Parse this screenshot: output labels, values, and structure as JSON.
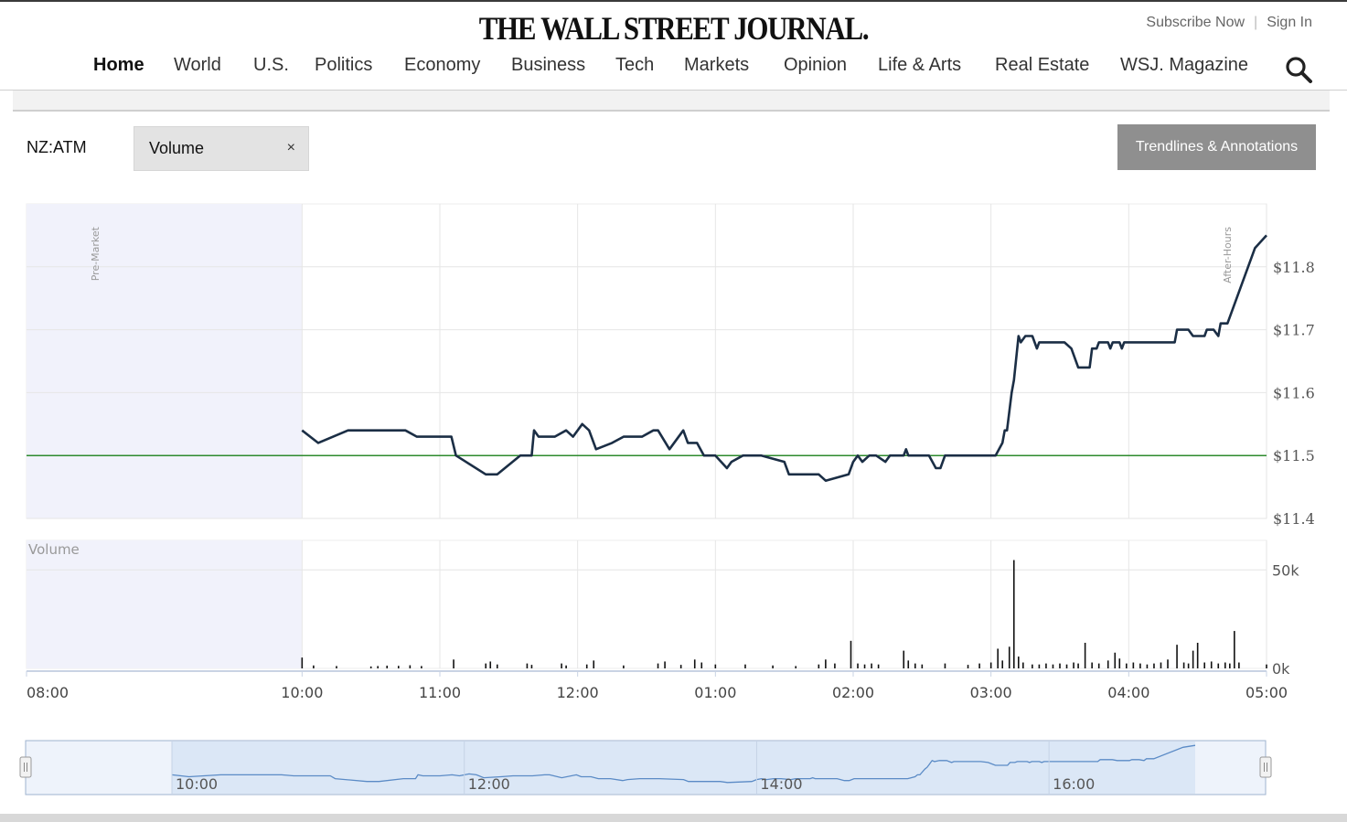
{
  "header": {
    "masthead": "THE WALL STREET JOURNAL.",
    "subscribe": "Subscribe Now",
    "separator": "|",
    "signin": "Sign In",
    "nav": [
      {
        "label": "Home",
        "active": true
      },
      {
        "label": "World"
      },
      {
        "label": "U.S."
      },
      {
        "label": "Politics"
      },
      {
        "label": "Economy"
      },
      {
        "label": "Business"
      },
      {
        "label": "Tech"
      },
      {
        "label": "Markets"
      },
      {
        "label": "Opinion"
      },
      {
        "label": "Life & Arts"
      },
      {
        "label": "Real Estate"
      },
      {
        "label": "WSJ. Magazine"
      }
    ],
    "search_icon": "search-icon"
  },
  "toolbar": {
    "symbol": "NZ:ATM",
    "indicator_chip": "Volume",
    "chip_close": "×",
    "trendlines_button": "Trendlines & Annotations"
  },
  "colors": {
    "price_line": "#1b2e45",
    "reference_line": "#2e8b2e",
    "session_shade": "#f1f2fb",
    "navigator_fill": "#dbe7f6",
    "navigator_line": "#5b8bc6"
  },
  "chart_data": [
    {
      "type": "line",
      "name": "price",
      "x_axis_ticks": [
        "08:00",
        "10:00",
        "11:00",
        "12:00",
        "01:00",
        "02:00",
        "03:00",
        "04:00",
        "05:00"
      ],
      "y_ticks": [
        "$11.4",
        "$11.5",
        "$11.6",
        "$11.7",
        "$11.8"
      ],
      "ylim": [
        11.4,
        11.9
      ],
      "reference_line": 11.5,
      "session_labels": {
        "pre": "Pre-Market",
        "post": "After-Hours"
      },
      "points": [
        [
          "10:00",
          11.54
        ],
        [
          "10:07",
          11.52
        ],
        [
          "10:20",
          11.54
        ],
        [
          "10:45",
          11.54
        ],
        [
          "10:50",
          11.53
        ],
        [
          "11:05",
          11.53
        ],
        [
          "11:07",
          11.5
        ],
        [
          "11:20",
          11.47
        ],
        [
          "11:25",
          11.47
        ],
        [
          "11:35",
          11.5
        ],
        [
          "11:40",
          11.5
        ],
        [
          "11:41",
          11.54
        ],
        [
          "11:43",
          11.53
        ],
        [
          "11:50",
          11.53
        ],
        [
          "11:55",
          11.54
        ],
        [
          "11:58",
          11.53
        ],
        [
          "12:02",
          11.55
        ],
        [
          "12:05",
          11.54
        ],
        [
          "12:08",
          11.51
        ],
        [
          "12:15",
          11.52
        ],
        [
          "12:20",
          11.53
        ],
        [
          "12:28",
          11.53
        ],
        [
          "12:33",
          11.54
        ],
        [
          "12:35",
          11.54
        ],
        [
          "12:40",
          11.51
        ],
        [
          "12:46",
          11.54
        ],
        [
          "12:48",
          11.52
        ],
        [
          "12:52",
          11.52
        ],
        [
          "12:55",
          11.5
        ],
        [
          "13:00",
          11.5
        ],
        [
          "13:05",
          11.48
        ],
        [
          "13:07",
          11.49
        ],
        [
          "13:12",
          11.5
        ],
        [
          "13:20",
          11.5
        ],
        [
          "13:30",
          11.49
        ],
        [
          "13:32",
          11.47
        ],
        [
          "13:45",
          11.47
        ],
        [
          "13:48",
          11.46
        ],
        [
          "13:58",
          11.47
        ],
        [
          "14:00",
          11.49
        ],
        [
          "14:02",
          11.5
        ],
        [
          "14:04",
          11.49
        ],
        [
          "14:07",
          11.5
        ],
        [
          "14:10",
          11.5
        ],
        [
          "14:14",
          11.49
        ],
        [
          "14:16",
          11.5
        ],
        [
          "14:22",
          11.5
        ],
        [
          "14:23",
          11.51
        ],
        [
          "14:24",
          11.5
        ],
        [
          "14:33",
          11.5
        ],
        [
          "14:36",
          11.48
        ],
        [
          "14:38",
          11.48
        ],
        [
          "14:40",
          11.5
        ],
        [
          "15:02",
          11.5
        ],
        [
          "15:05",
          11.52
        ],
        [
          "15:06",
          11.54
        ],
        [
          "15:07",
          11.54
        ],
        [
          "15:09",
          11.6
        ],
        [
          "15:10",
          11.62
        ],
        [
          "15:12",
          11.69
        ],
        [
          "15:13",
          11.68
        ],
        [
          "15:15",
          11.69
        ],
        [
          "15:18",
          11.69
        ],
        [
          "15:20",
          11.67
        ],
        [
          "15:21",
          11.68
        ],
        [
          "15:32",
          11.68
        ],
        [
          "15:35",
          11.67
        ],
        [
          "15:38",
          11.64
        ],
        [
          "15:43",
          11.64
        ],
        [
          "15:44",
          11.67
        ],
        [
          "15:46",
          11.67
        ],
        [
          "15:47",
          11.68
        ],
        [
          "15:51",
          11.68
        ],
        [
          "15:52",
          11.67
        ],
        [
          "15:53",
          11.68
        ],
        [
          "15:56",
          11.68
        ],
        [
          "15:57",
          11.67
        ],
        [
          "15:58",
          11.68
        ],
        [
          "16:20",
          11.68
        ],
        [
          "16:21",
          11.7
        ],
        [
          "16:26",
          11.7
        ],
        [
          "16:28",
          11.69
        ],
        [
          "16:33",
          11.69
        ],
        [
          "16:34",
          11.7
        ],
        [
          "16:37",
          11.7
        ],
        [
          "16:39",
          11.69
        ],
        [
          "16:40",
          11.71
        ],
        [
          "16:43",
          11.71
        ],
        [
          "16:55",
          11.83
        ],
        [
          "17:00",
          11.85
        ]
      ]
    },
    {
      "type": "bar",
      "name": "volume",
      "title": "Volume",
      "y_ticks": [
        "0k",
        "50k"
      ],
      "ylim": [
        0,
        65000
      ],
      "points": [
        [
          "10:00",
          5500
        ],
        [
          "10:05",
          1500
        ],
        [
          "10:15",
          1200
        ],
        [
          "10:30",
          1000
        ],
        [
          "10:33",
          1200
        ],
        [
          "10:37",
          1400
        ],
        [
          "10:42",
          1300
        ],
        [
          "10:47",
          1600
        ],
        [
          "10:52",
          1200
        ],
        [
          "11:06",
          4500
        ],
        [
          "11:20",
          2500
        ],
        [
          "11:22",
          3500
        ],
        [
          "11:25",
          2000
        ],
        [
          "11:38",
          2500
        ],
        [
          "11:40",
          1800
        ],
        [
          "11:53",
          2500
        ],
        [
          "11:55",
          1500
        ],
        [
          "12:04",
          2000
        ],
        [
          "12:07",
          4000
        ],
        [
          "12:20",
          1500
        ],
        [
          "12:35",
          2500
        ],
        [
          "12:38",
          3500
        ],
        [
          "12:45",
          1800
        ],
        [
          "12:51",
          4500
        ],
        [
          "12:54",
          3000
        ],
        [
          "13:00",
          2000
        ],
        [
          "13:13",
          2000
        ],
        [
          "13:25",
          1500
        ],
        [
          "13:35",
          1200
        ],
        [
          "13:45",
          2000
        ],
        [
          "13:48",
          4500
        ],
        [
          "13:52",
          2500
        ],
        [
          "13:59",
          14000
        ],
        [
          "14:02",
          2500
        ],
        [
          "14:05",
          2000
        ],
        [
          "14:08",
          2500
        ],
        [
          "14:11",
          2000
        ],
        [
          "14:22",
          9000
        ],
        [
          "14:24",
          4000
        ],
        [
          "14:27",
          2500
        ],
        [
          "14:30",
          2000
        ],
        [
          "14:40",
          2500
        ],
        [
          "14:50",
          1800
        ],
        [
          "14:55",
          2500
        ],
        [
          "15:00",
          3000
        ],
        [
          "15:03",
          10000
        ],
        [
          "15:05",
          4000
        ],
        [
          "15:08",
          11000
        ],
        [
          "15:10",
          55000
        ],
        [
          "15:12",
          6000
        ],
        [
          "15:14",
          3000
        ],
        [
          "15:18",
          2000
        ],
        [
          "15:21",
          2000
        ],
        [
          "15:24",
          2500
        ],
        [
          "15:27",
          2000
        ],
        [
          "15:30",
          2500
        ],
        [
          "15:33",
          2000
        ],
        [
          "15:36",
          3000
        ],
        [
          "15:38",
          2500
        ],
        [
          "15:41",
          13000
        ],
        [
          "15:44",
          3000
        ],
        [
          "15:47",
          2500
        ],
        [
          "15:51",
          4000
        ],
        [
          "15:54",
          8000
        ],
        [
          "15:56",
          5000
        ],
        [
          "15:59",
          2500
        ],
        [
          "16:02",
          3000
        ],
        [
          "16:05",
          2500
        ],
        [
          "16:08",
          2000
        ],
        [
          "16:11",
          2500
        ],
        [
          "16:14",
          3000
        ],
        [
          "16:17",
          4500
        ],
        [
          "16:21",
          12000
        ],
        [
          "16:24",
          3000
        ],
        [
          "16:26",
          2500
        ],
        [
          "16:28",
          9000
        ],
        [
          "16:30",
          13000
        ],
        [
          "16:33",
          3000
        ],
        [
          "16:36",
          3500
        ],
        [
          "16:39",
          2500
        ],
        [
          "16:42",
          3000
        ],
        [
          "16:44",
          2500
        ],
        [
          "16:46",
          19000
        ],
        [
          "16:48",
          3000
        ],
        [
          "17:00",
          2000
        ]
      ]
    },
    {
      "type": "area",
      "name": "navigator",
      "x_axis_ticks": [
        "10:00",
        "12:00",
        "14:00",
        "16:00"
      ]
    }
  ]
}
